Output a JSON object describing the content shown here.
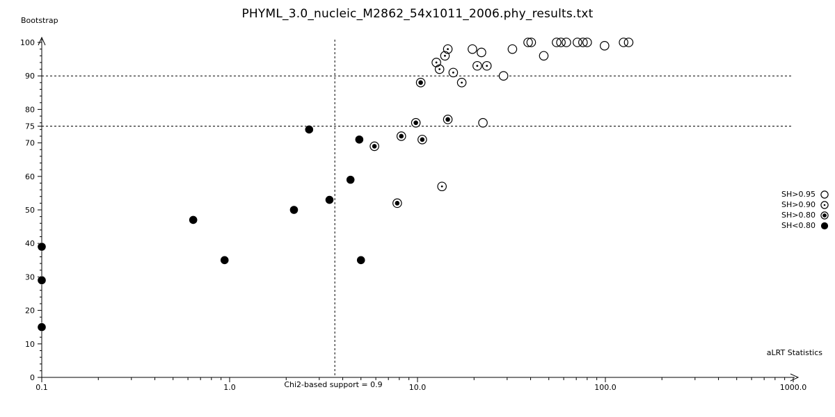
{
  "title": "PHYML_3.0_nucleic_M2862_54x1011_2006.phy_results.txt",
  "colors": {
    "foreground": "#000000",
    "background": "#ffffff"
  },
  "axes": {
    "x": {
      "label": "aLRT Statistics",
      "scale": "log",
      "min": 0.1,
      "max": 1000,
      "tick_values": [
        0.1,
        1,
        10,
        100,
        1000
      ],
      "tick_labels": [
        "0.1",
        "1.0",
        "10.0",
        "100.0",
        "1000.0"
      ]
    },
    "y": {
      "label": "Bootstrap",
      "min": 0,
      "max": 100,
      "tick_values": [
        0,
        10,
        20,
        30,
        40,
        50,
        60,
        70,
        75,
        80,
        90,
        100
      ],
      "minor_step": 2
    }
  },
  "reference_lines": {
    "horizontal": [
      90,
      75
    ],
    "vertical": {
      "x": 3.63,
      "label": "Chi2-based support = 0.9"
    }
  },
  "legend": {
    "position": "right",
    "items": [
      {
        "label": "SH>0.95",
        "symbol": "open"
      },
      {
        "label": "SH>0.90",
        "symbol": "dot"
      },
      {
        "label": "SH>0.80",
        "symbol": "bullseye"
      },
      {
        "label": "SH<0.80",
        "symbol": "filled"
      }
    ]
  },
  "chart_data": {
    "type": "scatter",
    "title": "PHYML_3.0_nucleic_M2862_54x1011_2006.phy_results.txt",
    "xlabel": "aLRT Statistics",
    "ylabel": "Bootstrap",
    "x_scale": "log",
    "xlim": [
      0.1,
      1000
    ],
    "ylim": [
      0,
      100
    ],
    "grid": false,
    "legend_position": "right",
    "series": [
      {
        "name": "SH>0.95",
        "marker": "open",
        "points": [
          [
            19.6,
            98
          ],
          [
            21.9,
            97
          ],
          [
            28.7,
            90
          ],
          [
            32,
            98
          ],
          [
            38.8,
            100
          ],
          [
            40.3,
            100
          ],
          [
            47,
            96
          ],
          [
            55,
            100
          ],
          [
            58,
            100
          ],
          [
            62,
            100
          ],
          [
            71,
            100
          ],
          [
            76,
            100
          ],
          [
            80,
            100
          ],
          [
            99,
            99
          ],
          [
            125,
            100
          ],
          [
            133,
            100
          ],
          [
            22.3,
            76
          ]
        ]
      },
      {
        "name": "SH>0.90",
        "marker": "dot",
        "points": [
          [
            14.5,
            98
          ],
          [
            14,
            96
          ],
          [
            12.6,
            94
          ],
          [
            13.1,
            92
          ],
          [
            15.5,
            91
          ],
          [
            17.2,
            88
          ],
          [
            20.8,
            93
          ],
          [
            23.4,
            93
          ],
          [
            13.5,
            57
          ]
        ]
      },
      {
        "name": "SH>0.80",
        "marker": "bullseye",
        "points": [
          [
            10.4,
            88
          ],
          [
            9.8,
            76
          ],
          [
            14.5,
            77
          ],
          [
            8.2,
            72
          ],
          [
            10.6,
            71
          ],
          [
            5.9,
            69
          ],
          [
            7.8,
            52
          ]
        ]
      },
      {
        "name": "SH<0.80",
        "marker": "filled",
        "points": [
          [
            0.1,
            39
          ],
          [
            0.1,
            29
          ],
          [
            0.1,
            15
          ],
          [
            0.64,
            47
          ],
          [
            0.94,
            35
          ],
          [
            2.2,
            50
          ],
          [
            2.65,
            74
          ],
          [
            3.4,
            53
          ],
          [
            4.4,
            59
          ],
          [
            4.9,
            71
          ],
          [
            5.0,
            35
          ]
        ]
      }
    ]
  }
}
